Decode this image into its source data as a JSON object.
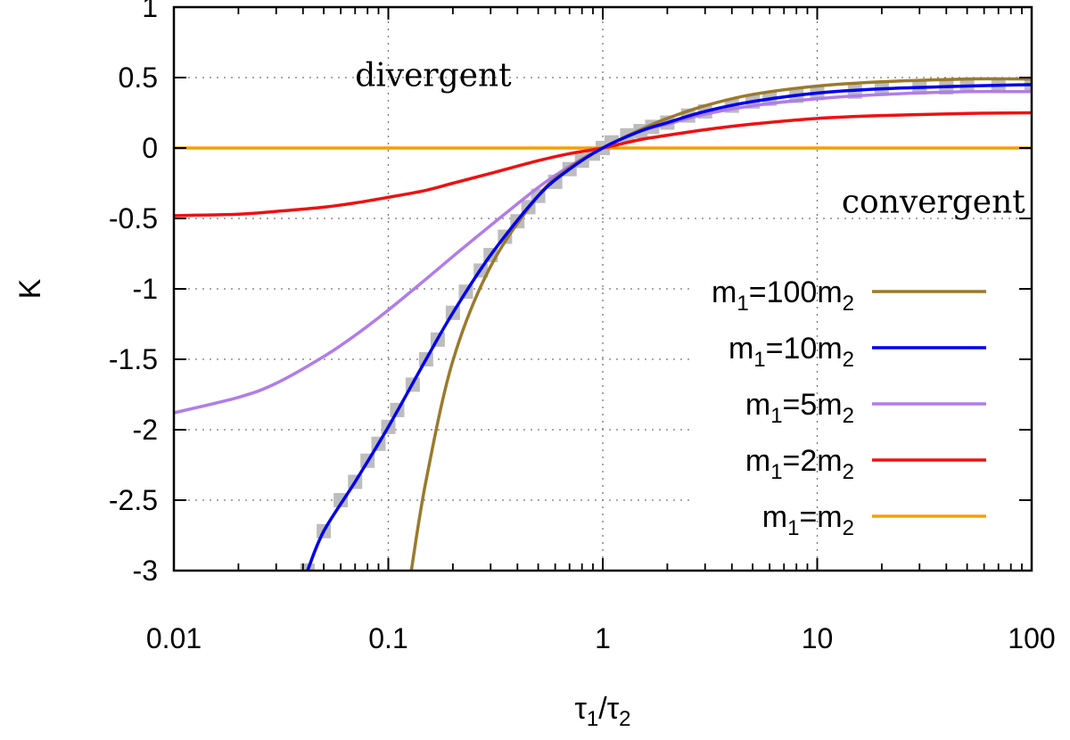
{
  "chart_data": {
    "type": "line",
    "title": "",
    "xlabel": {
      "base1": "τ",
      "sub1": "1",
      "sep": "/",
      "base2": "τ",
      "sub2": "2"
    },
    "ylabel": "K",
    "xscale": "log",
    "xlim": [
      0.01,
      100
    ],
    "ylim": [
      -3,
      1
    ],
    "x_ticks": [
      0.01,
      0.1,
      1,
      10,
      100
    ],
    "x_tick_labels": [
      "0.01",
      "0.1",
      "1",
      "10",
      "100"
    ],
    "y_ticks": [
      -3,
      -2.5,
      -2,
      -1.5,
      -1,
      -0.5,
      0,
      0.5,
      1
    ],
    "y_tick_labels": [
      "-3",
      "-2.5",
      "-2",
      "-1.5",
      "-1",
      "-0.5",
      "0",
      "0.5",
      "1"
    ],
    "grid": true,
    "legend_position": "bottom-right",
    "annotations": [
      {
        "text": "divergent",
        "x": 0.07,
        "y": 0.44
      },
      {
        "text": "convergent",
        "x": 13,
        "y": -0.46
      }
    ],
    "series": [
      {
        "label": {
          "pre": "m",
          "sub1": "1",
          "mid": "=100m",
          "sub2": "2"
        },
        "color": "#9a7a2c",
        "x": [
          0.128,
          0.15,
          0.2,
          0.3,
          0.5,
          0.7,
          1,
          1.5,
          2,
          3,
          5,
          10,
          20,
          50,
          100
        ],
        "y": [
          -3.0,
          -2.36,
          -1.51,
          -0.84,
          -0.34,
          -0.14,
          0.0,
          0.13,
          0.21,
          0.3,
          0.38,
          0.44,
          0.47,
          0.49,
          0.49
        ]
      },
      {
        "label": {
          "pre": "m",
          "sub1": "1",
          "mid": "=10m",
          "sub2": "2"
        },
        "color": "#0000ee",
        "x": [
          0.042,
          0.05,
          0.07,
          0.1,
          0.15,
          0.2,
          0.3,
          0.5,
          0.7,
          1,
          1.5,
          2,
          3,
          5,
          10,
          20,
          50,
          100
        ],
        "y": [
          -3.0,
          -2.72,
          -2.37,
          -1.98,
          -1.5,
          -1.17,
          -0.76,
          -0.34,
          -0.15,
          0.0,
          0.12,
          0.18,
          0.26,
          0.33,
          0.39,
          0.42,
          0.44,
          0.45
        ]
      },
      {
        "label": {
          "pre": "m",
          "sub1": "1",
          "mid": "=5m",
          "sub2": "2"
        },
        "color": "#b07de8",
        "x": [
          0.01,
          0.02,
          0.03,
          0.05,
          0.07,
          0.1,
          0.15,
          0.2,
          0.3,
          0.5,
          0.7,
          1,
          1.5,
          2,
          3,
          5,
          10,
          20,
          50,
          100
        ],
        "y": [
          -1.88,
          -1.77,
          -1.67,
          -1.48,
          -1.33,
          -1.15,
          -0.93,
          -0.77,
          -0.55,
          -0.28,
          -0.13,
          0.0,
          0.12,
          0.17,
          0.24,
          0.3,
          0.35,
          0.38,
          0.4,
          0.4
        ]
      },
      {
        "label": {
          "pre": "m",
          "sub1": "1",
          "mid": "=2m",
          "sub2": "2"
        },
        "color": "#ee1111",
        "x": [
          0.01,
          0.02,
          0.03,
          0.05,
          0.07,
          0.1,
          0.15,
          0.2,
          0.3,
          0.5,
          0.7,
          1,
          1.5,
          2,
          3,
          5,
          10,
          20,
          50,
          100
        ],
        "y": [
          -0.48,
          -0.47,
          -0.45,
          -0.42,
          -0.39,
          -0.35,
          -0.3,
          -0.25,
          -0.18,
          -0.09,
          -0.04,
          0.0,
          0.06,
          0.09,
          0.13,
          0.17,
          0.21,
          0.23,
          0.245,
          0.25
        ]
      },
      {
        "label": {
          "pre": "m",
          "sub1": "1",
          "mid": "=m",
          "sub2": "2"
        },
        "color": "#f5a000",
        "x": [
          0.01,
          100
        ],
        "y": [
          0,
          0
        ]
      }
    ],
    "reference_markers": {
      "color": "#bdbdbd",
      "marker": "square",
      "x": [
        0.042,
        0.05,
        0.06,
        0.07,
        0.08,
        0.09,
        0.1,
        0.11,
        0.13,
        0.15,
        0.17,
        0.2,
        0.23,
        0.27,
        0.3,
        0.35,
        0.4,
        0.45,
        0.5,
        0.6,
        0.7,
        0.8,
        0.9,
        1,
        1.1,
        1.3,
        1.5,
        1.7,
        2,
        2.5,
        3,
        4,
        5,
        6,
        8,
        10,
        15,
        20,
        30,
        40,
        50,
        70,
        100
      ],
      "y": [
        -3.0,
        -2.72,
        -2.5,
        -2.37,
        -2.22,
        -2.1,
        -1.98,
        -1.86,
        -1.68,
        -1.5,
        -1.36,
        -1.17,
        -1.02,
        -0.87,
        -0.76,
        -0.63,
        -0.52,
        -0.42,
        -0.34,
        -0.24,
        -0.15,
        -0.09,
        -0.04,
        0.0,
        0.04,
        0.09,
        0.12,
        0.15,
        0.18,
        0.23,
        0.26,
        0.3,
        0.33,
        0.35,
        0.37,
        0.39,
        0.4,
        0.42,
        0.43,
        0.43,
        0.44,
        0.44,
        0.45
      ]
    }
  }
}
